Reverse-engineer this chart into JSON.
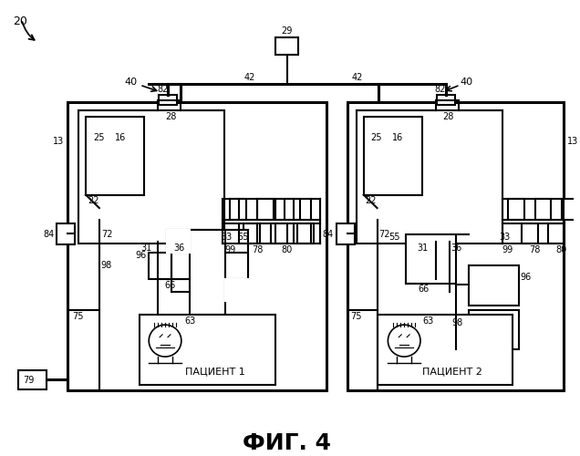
{
  "title": "ФИГ. 4",
  "patient1": "ПАЦИЕНТ 1",
  "patient2": "ПАЦИЕНТ 2"
}
